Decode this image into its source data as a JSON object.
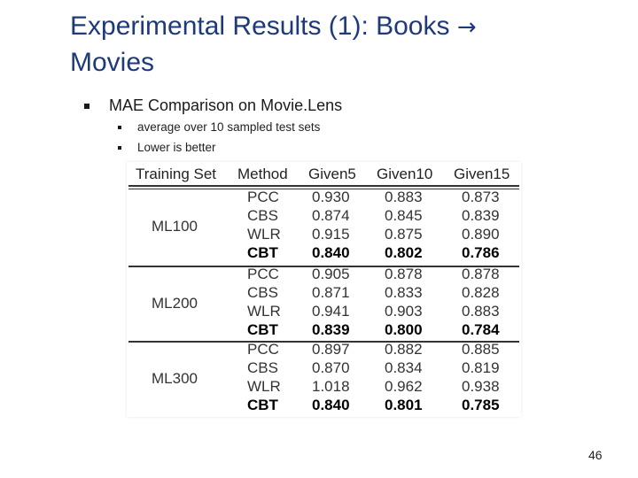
{
  "slide": {
    "title_part1": "Experimental Results (1): Books",
    "title_arrow": "→",
    "title_part2": "Movies",
    "bullet": "MAE Comparison on Movie.Lens",
    "subbullets": [
      "average over 10 sampled test sets",
      "Lower is better"
    ],
    "page_number": "46"
  },
  "table": {
    "headers": [
      "Training Set",
      "Method",
      "Given5",
      "Given10",
      "Given15"
    ],
    "groups": [
      {
        "name": "ML100",
        "rows": [
          {
            "method": "PCC",
            "g5": "0.930",
            "g10": "0.883",
            "g15": "0.873",
            "bold": false
          },
          {
            "method": "CBS",
            "g5": "0.874",
            "g10": "0.845",
            "g15": "0.839",
            "bold": false
          },
          {
            "method": "WLR",
            "g5": "0.915",
            "g10": "0.875",
            "g15": "0.890",
            "bold": false
          },
          {
            "method": "CBT",
            "g5": "0.840",
            "g10": "0.802",
            "g15": "0.786",
            "bold": true
          }
        ]
      },
      {
        "name": "ML200",
        "rows": [
          {
            "method": "PCC",
            "g5": "0.905",
            "g10": "0.878",
            "g15": "0.878",
            "bold": false
          },
          {
            "method": "CBS",
            "g5": "0.871",
            "g10": "0.833",
            "g15": "0.828",
            "bold": false
          },
          {
            "method": "WLR",
            "g5": "0.941",
            "g10": "0.903",
            "g15": "0.883",
            "bold": false
          },
          {
            "method": "CBT",
            "g5": "0.839",
            "g10": "0.800",
            "g15": "0.784",
            "bold": true
          }
        ]
      },
      {
        "name": "ML300",
        "rows": [
          {
            "method": "PCC",
            "g5": "0.897",
            "g10": "0.882",
            "g15": "0.885",
            "bold": false
          },
          {
            "method": "CBS",
            "g5": "0.870",
            "g10": "0.834",
            "g15": "0.819",
            "bold": false
          },
          {
            "method": "WLR",
            "g5": "1.018",
            "g10": "0.962",
            "g15": "0.938",
            "bold": false
          },
          {
            "method": "CBT",
            "g5": "0.840",
            "g10": "0.801",
            "g15": "0.785",
            "bold": true
          }
        ]
      }
    ]
  },
  "colors": {
    "title": "#1f3a7a"
  }
}
